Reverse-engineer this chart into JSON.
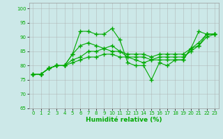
{
  "xlabel": "Humidité relative (%)",
  "xlim": [
    -0.5,
    23.5
  ],
  "ylim": [
    65,
    102
  ],
  "yticks": [
    65,
    70,
    75,
    80,
    85,
    90,
    95,
    100
  ],
  "xticks": [
    0,
    1,
    2,
    3,
    4,
    5,
    6,
    7,
    8,
    9,
    10,
    11,
    12,
    13,
    14,
    15,
    16,
    17,
    18,
    19,
    20,
    21,
    22,
    23
  ],
  "bg_color": "#cce8e8",
  "grid_color": "#aaaaaa",
  "line_color": "#00aa00",
  "series": [
    [
      77,
      77,
      79,
      80,
      80,
      84,
      92,
      92,
      91,
      91,
      93,
      89,
      81,
      80,
      80,
      75,
      81,
      80,
      82,
      82,
      86,
      92,
      91,
      91
    ],
    [
      77,
      77,
      79,
      80,
      80,
      84,
      87,
      88,
      87,
      86,
      87,
      85,
      83,
      82,
      81,
      82,
      82,
      82,
      82,
      82,
      86,
      87,
      91,
      91
    ],
    [
      77,
      77,
      79,
      80,
      80,
      82,
      83,
      85,
      85,
      86,
      85,
      85,
      84,
      84,
      84,
      83,
      84,
      84,
      84,
      84,
      86,
      88,
      91,
      91
    ],
    [
      77,
      77,
      79,
      80,
      80,
      81,
      82,
      83,
      83,
      84,
      84,
      83,
      83,
      83,
      83,
      82,
      83,
      83,
      83,
      83,
      85,
      87,
      90,
      91
    ]
  ]
}
